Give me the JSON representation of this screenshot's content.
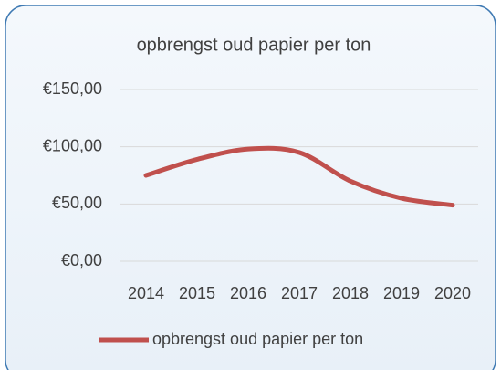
{
  "chart_data": {
    "type": "line",
    "title": "opbrengst oud papier per ton",
    "categories": [
      "2014",
      "2015",
      "2016",
      "2017",
      "2018",
      "2019",
      "2020"
    ],
    "series": [
      {
        "name": "opbrengst oud papier per ton",
        "color": "#c0504d",
        "values": [
          75,
          89,
          98,
          95,
          70,
          55,
          49
        ]
      }
    ],
    "ylim": [
      0,
      150
    ],
    "yticks": [
      {
        "value": 0,
        "label": "€0,00"
      },
      {
        "value": 50,
        "label": "€50,00"
      },
      {
        "value": 100,
        "label": "€100,00"
      },
      {
        "value": 150,
        "label": "€150,00"
      }
    ],
    "grid": true,
    "smooth": true,
    "legend": "bottom"
  }
}
